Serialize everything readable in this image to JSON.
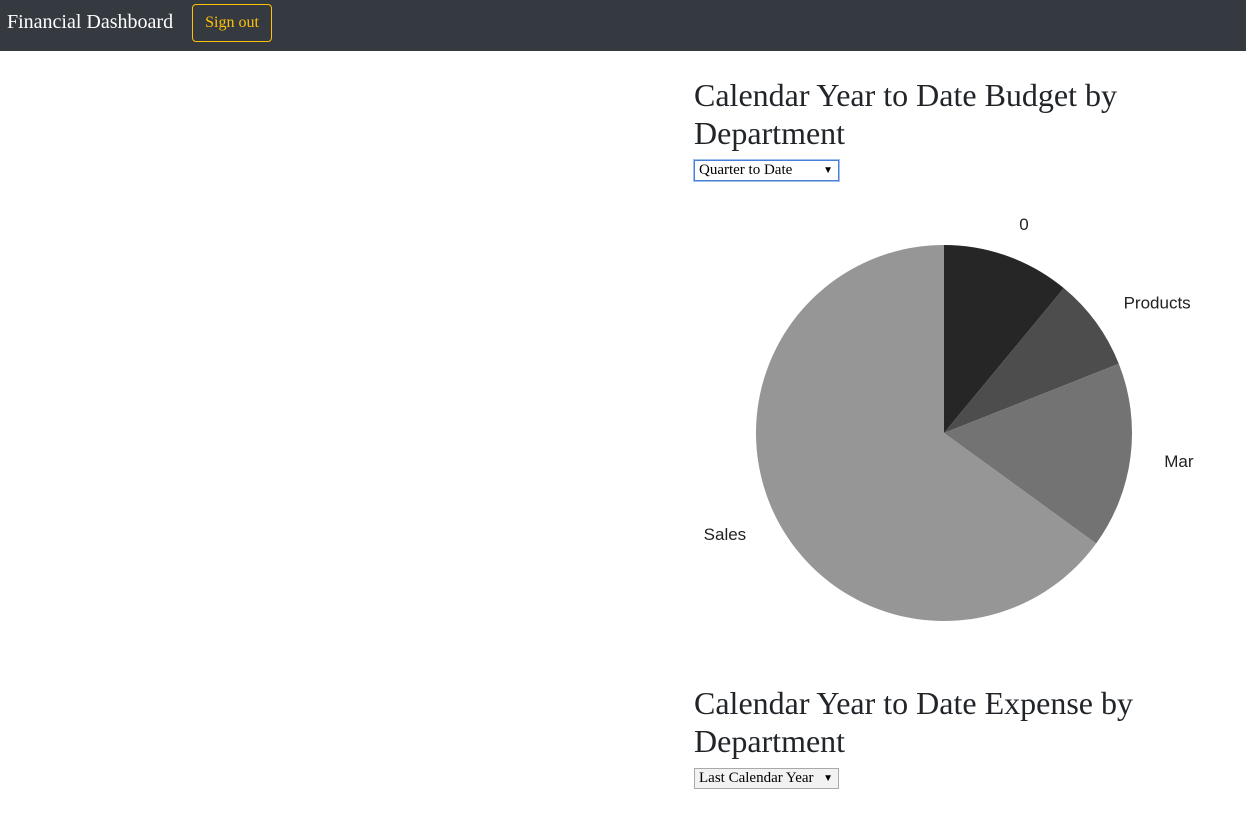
{
  "navbar": {
    "brand": "Financial Dashboard",
    "signout_label": "Sign out"
  },
  "budget_section": {
    "title": "Calendar Year to Date Budget by Department",
    "period_select": {
      "selected": "Quarter to Date"
    }
  },
  "expense_section": {
    "title": "Calendar Year to Date Expense by Department",
    "period_select": {
      "selected": "Last Calendar Year"
    }
  },
  "chart_data": {
    "type": "pie",
    "title": "",
    "slices": [
      {
        "label": "0",
        "value": 11,
        "color": "#262626"
      },
      {
        "label": "Products",
        "value": 8,
        "color": "#4d4d4d"
      },
      {
        "label": "Marketing",
        "value": 16,
        "color": "#737373"
      },
      {
        "label": "Sales",
        "value": 65,
        "color": "#969696"
      }
    ],
    "start_angle_deg": 0,
    "direction": "clockwise"
  }
}
